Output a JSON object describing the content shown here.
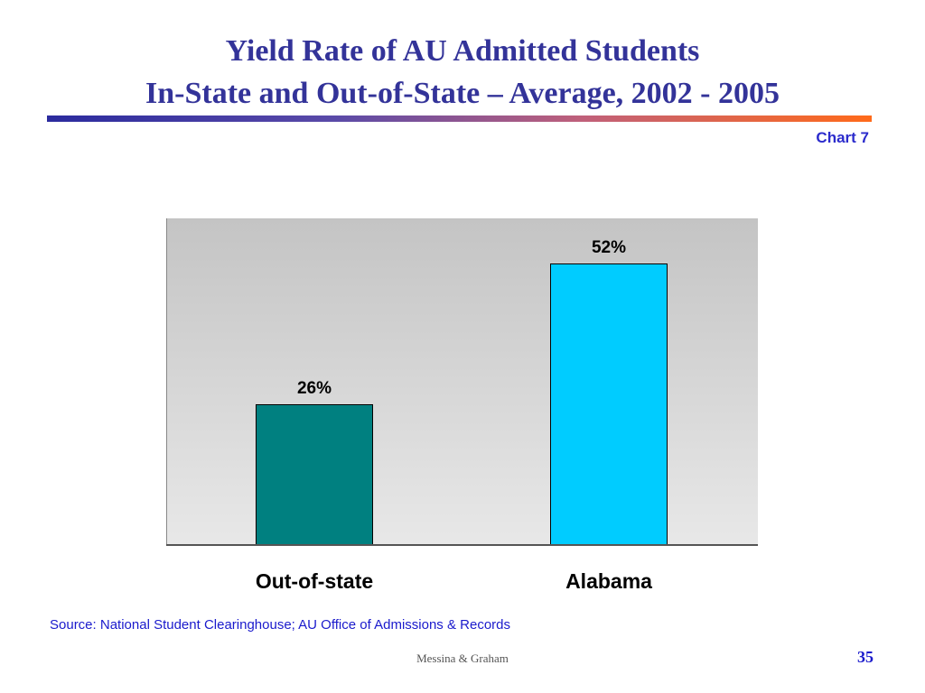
{
  "slide": {
    "title_line1": "Yield Rate of AU Admitted Students",
    "title_line2": "In-State and Out-of-State – Average, 2002 - 2005",
    "chart_label": "Chart 7",
    "source": "Source:  National Student Clearinghouse; AU Office of Admissions & Records",
    "footer_authors": "Messina & Graham",
    "page_number": "35"
  },
  "chart_data": {
    "type": "bar",
    "categories": [
      "Out-of-state",
      "Alabama"
    ],
    "values": [
      26,
      52
    ],
    "data_labels": [
      "26%",
      "52%"
    ],
    "colors": [
      "#008080",
      "#00ccff"
    ],
    "ylim": [
      0,
      60
    ],
    "title": "",
    "xlabel": "",
    "ylabel": "",
    "grid": false,
    "legend": "none"
  }
}
